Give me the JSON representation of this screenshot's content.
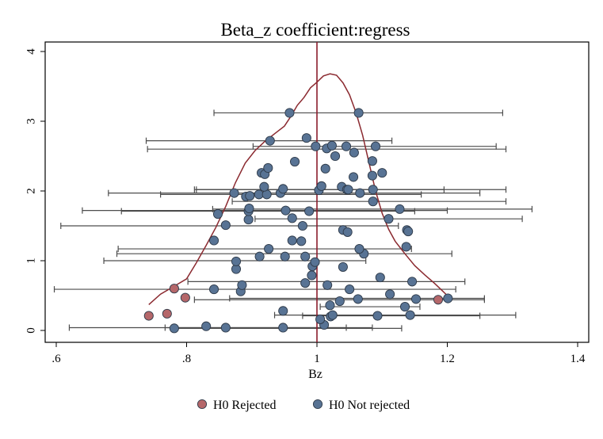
{
  "chart_data": {
    "type": "scatter",
    "title": "Beta_z coefficient:regress",
    "xlabel": "Bz",
    "ylabel": "",
    "xlim": [
      0.6,
      1.4
    ],
    "ylim": [
      0,
      4
    ],
    "xticks": [
      0.6,
      0.8,
      1.0,
      1.2,
      1.4
    ],
    "xtick_labels": [
      ".6",
      ".8",
      "1",
      "1.2",
      "1.4"
    ],
    "yticks": [
      0,
      1,
      2,
      3,
      4
    ],
    "ytick_labels": [
      "0",
      "1",
      "2",
      "3",
      "4"
    ],
    "reference_line_x": 1.0,
    "grid": false,
    "legend_position": "bottom",
    "colors": {
      "rejected": "#b5676a",
      "not_rejected": "#587394",
      "reference_line": "#8b1c2c",
      "density_line": "#8b2a30",
      "ci_bars": "#4d4d4d",
      "frame": "#000000"
    },
    "series": [
      {
        "name": "H0 Rejected",
        "color": "#b5676a",
        "points": [
          {
            "x": 0.742,
            "y": 0.21
          },
          {
            "x": 0.77,
            "y": 0.24
          },
          {
            "x": 0.781,
            "y": 0.6
          },
          {
            "x": 0.798,
            "y": 0.47
          },
          {
            "x": 1.186,
            "y": 0.44
          }
        ]
      },
      {
        "name": "H0 Not rejected",
        "color": "#587394",
        "points": [
          {
            "x": 0.781,
            "y": 0.03
          },
          {
            "x": 0.83,
            "y": 0.06
          },
          {
            "x": 0.86,
            "y": 0.04
          },
          {
            "x": 0.948,
            "y": 0.04
          },
          {
            "x": 1.011,
            "y": 0.08
          },
          {
            "x": 1.005,
            "y": 0.16
          },
          {
            "x": 1.021,
            "y": 0.2
          },
          {
            "x": 1.024,
            "y": 0.22
          },
          {
            "x": 1.093,
            "y": 0.21
          },
          {
            "x": 1.143,
            "y": 0.22
          },
          {
            "x": 0.948,
            "y": 0.28
          },
          {
            "x": 1.02,
            "y": 0.36
          },
          {
            "x": 1.135,
            "y": 0.34
          },
          {
            "x": 1.035,
            "y": 0.42
          },
          {
            "x": 1.063,
            "y": 0.45
          },
          {
            "x": 1.152,
            "y": 0.45
          },
          {
            "x": 1.201,
            "y": 0.46
          },
          {
            "x": 0.883,
            "y": 0.56
          },
          {
            "x": 1.05,
            "y": 0.59
          },
          {
            "x": 1.112,
            "y": 0.52
          },
          {
            "x": 0.842,
            "y": 0.59
          },
          {
            "x": 0.885,
            "y": 0.65
          },
          {
            "x": 0.982,
            "y": 0.68
          },
          {
            "x": 1.016,
            "y": 0.65
          },
          {
            "x": 1.146,
            "y": 0.7
          },
          {
            "x": 0.992,
            "y": 0.79
          },
          {
            "x": 1.097,
            "y": 0.76
          },
          {
            "x": 0.876,
            "y": 0.88
          },
          {
            "x": 0.993,
            "y": 0.92
          },
          {
            "x": 1.04,
            "y": 0.91
          },
          {
            "x": 0.876,
            "y": 0.99
          },
          {
            "x": 0.997,
            "y": 0.98
          },
          {
            "x": 0.912,
            "y": 1.06
          },
          {
            "x": 0.951,
            "y": 1.06
          },
          {
            "x": 0.982,
            "y": 1.06
          },
          {
            "x": 1.072,
            "y": 1.1
          },
          {
            "x": 0.926,
            "y": 1.17
          },
          {
            "x": 1.065,
            "y": 1.17
          },
          {
            "x": 1.137,
            "y": 1.2
          },
          {
            "x": 0.842,
            "y": 1.29
          },
          {
            "x": 0.962,
            "y": 1.29
          },
          {
            "x": 0.976,
            "y": 1.28
          },
          {
            "x": 1.04,
            "y": 1.44
          },
          {
            "x": 1.047,
            "y": 1.41
          },
          {
            "x": 1.138,
            "y": 1.44
          },
          {
            "x": 1.14,
            "y": 1.42
          },
          {
            "x": 0.86,
            "y": 1.51
          },
          {
            "x": 0.978,
            "y": 1.5
          },
          {
            "x": 0.895,
            "y": 1.59
          },
          {
            "x": 0.962,
            "y": 1.61
          },
          {
            "x": 1.11,
            "y": 1.6
          },
          {
            "x": 0.848,
            "y": 1.67
          },
          {
            "x": 0.895,
            "y": 1.71
          },
          {
            "x": 0.896,
            "y": 1.75
          },
          {
            "x": 0.952,
            "y": 1.72
          },
          {
            "x": 0.988,
            "y": 1.71
          },
          {
            "x": 1.127,
            "y": 1.74
          },
          {
            "x": 1.086,
            "y": 1.85
          },
          {
            "x": 0.873,
            "y": 1.97
          },
          {
            "x": 0.891,
            "y": 1.92
          },
          {
            "x": 0.897,
            "y": 1.93
          },
          {
            "x": 0.911,
            "y": 1.95
          },
          {
            "x": 0.923,
            "y": 1.95
          },
          {
            "x": 0.919,
            "y": 2.06
          },
          {
            "x": 0.944,
            "y": 1.97
          },
          {
            "x": 0.948,
            "y": 2.03
          },
          {
            "x": 1.003,
            "y": 2.01
          },
          {
            "x": 1.007,
            "y": 2.07
          },
          {
            "x": 1.038,
            "y": 2.06
          },
          {
            "x": 1.046,
            "y": 2.02
          },
          {
            "x": 1.048,
            "y": 2.02
          },
          {
            "x": 1.066,
            "y": 1.97
          },
          {
            "x": 1.086,
            "y": 2.02
          },
          {
            "x": 0.915,
            "y": 2.26
          },
          {
            "x": 0.92,
            "y": 2.24
          },
          {
            "x": 0.925,
            "y": 2.33
          },
          {
            "x": 1.013,
            "y": 2.32
          },
          {
            "x": 1.056,
            "y": 2.2
          },
          {
            "x": 1.085,
            "y": 2.22
          },
          {
            "x": 1.1,
            "y": 2.26
          },
          {
            "x": 0.966,
            "y": 2.42
          },
          {
            "x": 1.028,
            "y": 2.5
          },
          {
            "x": 1.085,
            "y": 2.43
          },
          {
            "x": 1.057,
            "y": 2.55
          },
          {
            "x": 0.998,
            "y": 2.64
          },
          {
            "x": 1.015,
            "y": 2.61
          },
          {
            "x": 1.023,
            "y": 2.65
          },
          {
            "x": 1.045,
            "y": 2.64
          },
          {
            "x": 1.09,
            "y": 2.64
          },
          {
            "x": 0.928,
            "y": 2.72
          },
          {
            "x": 0.984,
            "y": 2.76
          },
          {
            "x": 0.958,
            "y": 3.12
          },
          {
            "x": 1.064,
            "y": 3.12
          }
        ]
      }
    ],
    "intervals": [
      {
        "y": 3.12,
        "lo": 0.842,
        "hi": 1.285
      },
      {
        "y": 2.72,
        "lo": 0.738,
        "hi": 1.115
      },
      {
        "y": 2.64,
        "lo": 0.902,
        "hi": 1.275
      },
      {
        "y": 2.6,
        "lo": 0.74,
        "hi": 1.29
      },
      {
        "y": 2.02,
        "lo": 0.815,
        "hi": 1.195
      },
      {
        "y": 2.02,
        "lo": 0.812,
        "hi": 1.29
      },
      {
        "y": 1.97,
        "lo": 0.68,
        "hi": 1.25
      },
      {
        "y": 1.95,
        "lo": 0.76,
        "hi": 1.16
      },
      {
        "y": 1.85,
        "lo": 0.87,
        "hi": 1.29
      },
      {
        "y": 1.74,
        "lo": 0.84,
        "hi": 1.33
      },
      {
        "y": 1.72,
        "lo": 0.64,
        "hi": 1.2
      },
      {
        "y": 1.71,
        "lo": 0.7,
        "hi": 1.15
      },
      {
        "y": 1.6,
        "lo": 0.905,
        "hi": 1.315
      },
      {
        "y": 1.5,
        "lo": 0.607,
        "hi": 1.125
      },
      {
        "y": 1.17,
        "lo": 0.695,
        "hi": 1.145
      },
      {
        "y": 1.1,
        "lo": 0.693,
        "hi": 1.207
      },
      {
        "y": 1.0,
        "lo": 0.673,
        "hi": 1.075
      },
      {
        "y": 0.7,
        "lo": 0.802,
        "hi": 1.227
      },
      {
        "y": 0.59,
        "lo": 0.597,
        "hi": 1.213
      },
      {
        "y": 0.46,
        "lo": 0.866,
        "hi": 1.257
      },
      {
        "y": 0.44,
        "lo": 0.812,
        "hi": 1.257
      },
      {
        "y": 0.34,
        "lo": 1.005,
        "hi": 1.158
      },
      {
        "y": 0.22,
        "lo": 0.935,
        "hi": 1.305
      },
      {
        "y": 0.21,
        "lo": 0.978,
        "hi": 1.25
      },
      {
        "y": 0.04,
        "lo": 0.62,
        "hi": 1.085
      },
      {
        "y": 0.04,
        "lo": 0.767,
        "hi": 1.045
      },
      {
        "y": 0.03,
        "lo": 0.785,
        "hi": 1.13
      }
    ],
    "density_curve": [
      [
        0.742,
        0.37
      ],
      [
        0.76,
        0.52
      ],
      [
        0.78,
        0.63
      ],
      [
        0.8,
        0.74
      ],
      [
        0.815,
        0.97
      ],
      [
        0.83,
        1.22
      ],
      [
        0.845,
        1.48
      ],
      [
        0.86,
        1.78
      ],
      [
        0.875,
        2.12
      ],
      [
        0.89,
        2.4
      ],
      [
        0.905,
        2.58
      ],
      [
        0.92,
        2.71
      ],
      [
        0.935,
        2.82
      ],
      [
        0.95,
        2.93
      ],
      [
        0.96,
        3.07
      ],
      [
        0.97,
        3.23
      ],
      [
        0.98,
        3.34
      ],
      [
        0.99,
        3.48
      ],
      [
        1.0,
        3.56
      ],
      [
        1.01,
        3.65
      ],
      [
        1.02,
        3.68
      ],
      [
        1.03,
        3.66
      ],
      [
        1.04,
        3.55
      ],
      [
        1.05,
        3.38
      ],
      [
        1.06,
        3.12
      ],
      [
        1.07,
        2.8
      ],
      [
        1.08,
        2.4
      ],
      [
        1.09,
        2.0
      ],
      [
        1.1,
        1.68
      ],
      [
        1.11,
        1.45
      ],
      [
        1.12,
        1.28
      ],
      [
        1.135,
        1.1
      ],
      [
        1.15,
        0.93
      ],
      [
        1.165,
        0.8
      ],
      [
        1.18,
        0.68
      ],
      [
        1.19,
        0.59
      ],
      [
        1.2,
        0.5
      ]
    ]
  }
}
